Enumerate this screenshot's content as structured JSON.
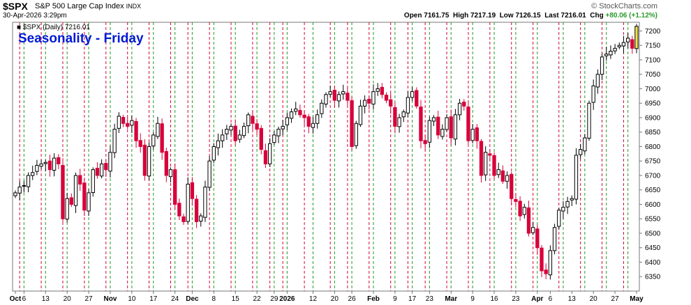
{
  "header": {
    "symbol": "$SPX",
    "name": "S&P 500 Large Cap Index",
    "exchange": "INDX",
    "watermark": "© StockCharts.com",
    "date": "30-Apr-2026 3:29pm",
    "open_label": "Open",
    "open": "7161.75",
    "high_label": "High",
    "high": "7217.19",
    "low_label": "Low",
    "low": "7126.15",
    "last_label": "Last",
    "last": "7216.01",
    "chg_label": "Chg",
    "chg": "+80.06 (+1.12%)"
  },
  "legend": {
    "series": "$SPX (Daily) 7216.01",
    "title": "Seasonality - Friday"
  },
  "colors": {
    "up": "#000000",
    "down": "#d8003a",
    "highlight": "#f2e34c",
    "friday_line": "#d8003a",
    "monday_line": "#1f9a1f",
    "title": "#0019d6"
  },
  "chart_data": {
    "type": "candlestick",
    "title": "Seasonality - Friday",
    "y_axis": {
      "min": 6300,
      "max": 7230,
      "ticks": [
        6350,
        6400,
        6450,
        6500,
        6550,
        6600,
        6650,
        6700,
        6750,
        6800,
        6850,
        6900,
        6950,
        7000,
        7050,
        7100,
        7150,
        7200
      ],
      "side": "right"
    },
    "x_axis_labels": [
      {
        "label": "Oct",
        "idx": 0
      },
      {
        "label": "6",
        "idx": 2
      },
      {
        "label": "13",
        "idx": 7
      },
      {
        "label": "20",
        "idx": 12
      },
      {
        "label": "27",
        "idx": 17
      },
      {
        "label": "Nov",
        "idx": 22
      },
      {
        "label": "10",
        "idx": 27
      },
      {
        "label": "17",
        "idx": 32
      },
      {
        "label": "24",
        "idx": 37
      },
      {
        "label": "Dec",
        "idx": 41
      },
      {
        "label": "8",
        "idx": 46
      },
      {
        "label": "15",
        "idx": 51
      },
      {
        "label": "22",
        "idx": 56
      },
      {
        "label": "29",
        "idx": 60
      },
      {
        "label": "2026",
        "idx": 63
      },
      {
        "label": "12",
        "idx": 69
      },
      {
        "label": "20",
        "idx": 74
      },
      {
        "label": "26",
        "idx": 78
      },
      {
        "label": "Feb",
        "idx": 83
      },
      {
        "label": "9",
        "idx": 88
      },
      {
        "label": "17",
        "idx": 92
      },
      {
        "label": "23",
        "idx": 96
      },
      {
        "label": "Mar",
        "idx": 101
      },
      {
        "label": "9",
        "idx": 106
      },
      {
        "label": "16",
        "idx": 111
      },
      {
        "label": "23",
        "idx": 116
      },
      {
        "label": "Apr",
        "idx": 121
      },
      {
        "label": "6",
        "idx": 124
      },
      {
        "label": "13",
        "idx": 129
      },
      {
        "label": "20",
        "idx": 134
      },
      {
        "label": "27",
        "idx": 139
      },
      {
        "label": "May",
        "idx": 144
      }
    ],
    "friday_lines": [
      1,
      6,
      11,
      16,
      21,
      26,
      31,
      36,
      40,
      45,
      50,
      55,
      59,
      62,
      67,
      73,
      77,
      82,
      87,
      91,
      95,
      100,
      105,
      110,
      115,
      120,
      126,
      131,
      136,
      141
    ],
    "monday_lines": [
      2,
      7,
      12,
      17,
      22,
      27,
      32,
      37,
      41,
      46,
      51,
      56,
      60,
      63,
      69,
      74,
      78,
      83,
      88,
      92,
      96,
      101,
      106,
      111,
      116,
      121,
      127,
      132,
      137,
      142
    ],
    "closes": [
      6640,
      6660,
      6665,
      6700,
      6710,
      6735,
      6740,
      6745,
      6720,
      6760,
      6740,
      6550,
      6620,
      6600,
      6700,
      6670,
      6580,
      6640,
      6720,
      6700,
      6740,
      6720,
      6780,
      6860,
      6905,
      6880,
      6870,
      6890,
      6820,
      6800,
      6700,
      6800,
      6840,
      6880,
      6780,
      6700,
      6720,
      6600,
      6560,
      6540,
      6670,
      6620,
      6540,
      6560,
      6660,
      6750,
      6800,
      6820,
      6840,
      6860,
      6870,
      6820,
      6840,
      6870,
      6910,
      6880,
      6860,
      6790,
      6740,
      6810,
      6840,
      6860,
      6870,
      6900,
      6920,
      6930,
      6910,
      6900,
      6870,
      6880,
      6910,
      6950,
      6980,
      6990,
      6960,
      6980,
      6990,
      6960,
      6800,
      6880,
      6940,
      6960,
      6950,
      6990,
      7000,
      6980,
      6960,
      6940,
      6870,
      6900,
      6920,
      6970,
      6990,
      6940,
      6820,
      6810,
      6890,
      6900,
      6840,
      6860,
      6900,
      6830,
      6910,
      6950,
      6940,
      6820,
      6860,
      6820,
      6700,
      6780,
      6770,
      6700,
      6720,
      6680,
      6700,
      6620,
      6610,
      6560,
      6590,
      6500,
      6520,
      6450,
      6370,
      6360,
      6440,
      6520,
      6580,
      6590,
      6610,
      6620,
      6770,
      6790,
      6830,
      6950,
      7010,
      7050,
      7110,
      7120,
      7130,
      7140,
      7150,
      7160,
      7175,
      7140,
      7216
    ],
    "last_bar_highlight": true
  }
}
